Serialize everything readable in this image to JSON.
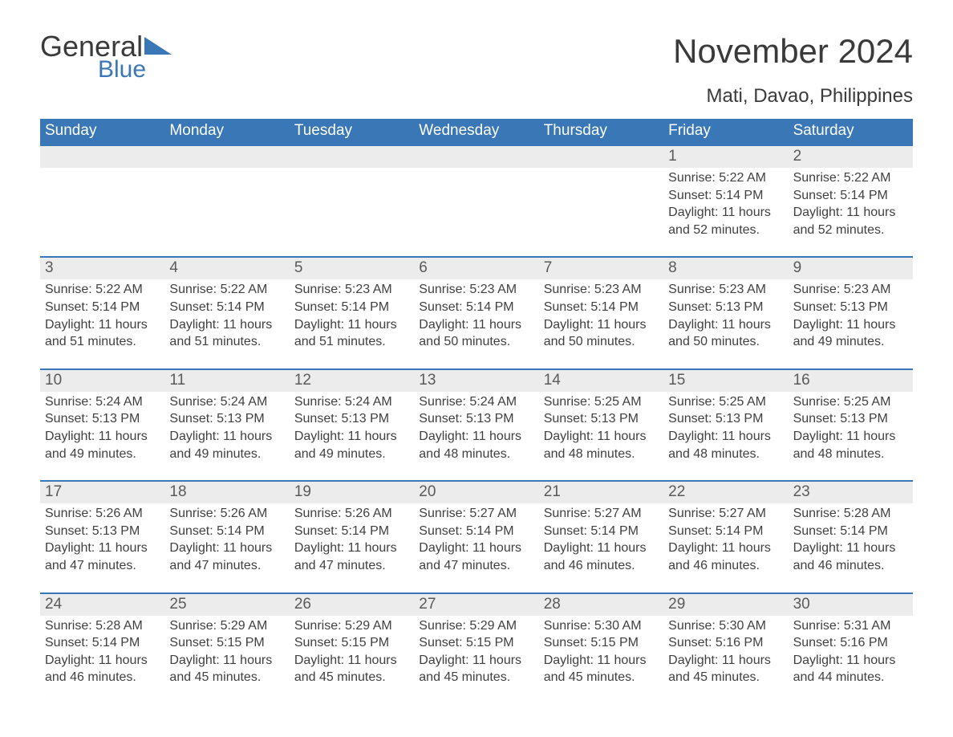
{
  "logo": {
    "word1": "General",
    "word2": "Blue",
    "accent_color": "#3a77b7"
  },
  "title": "November 2024",
  "location": "Mati, Davao, Philippines",
  "weekday_header_bg": "#3a77b7",
  "weekday_header_fg": "#ffffff",
  "datenum_bg": "#ececec",
  "strip_border": "#3a77b7",
  "text_color": "#404040",
  "weekdays": [
    "Sunday",
    "Monday",
    "Tuesday",
    "Wednesday",
    "Thursday",
    "Friday",
    "Saturday"
  ],
  "weeks": [
    [
      null,
      null,
      null,
      null,
      null,
      {
        "n": "1",
        "sunrise": "Sunrise: 5:22 AM",
        "sunset": "Sunset: 5:14 PM",
        "day1": "Daylight: 11 hours",
        "day2": "and 52 minutes."
      },
      {
        "n": "2",
        "sunrise": "Sunrise: 5:22 AM",
        "sunset": "Sunset: 5:14 PM",
        "day1": "Daylight: 11 hours",
        "day2": "and 52 minutes."
      }
    ],
    [
      {
        "n": "3",
        "sunrise": "Sunrise: 5:22 AM",
        "sunset": "Sunset: 5:14 PM",
        "day1": "Daylight: 11 hours",
        "day2": "and 51 minutes."
      },
      {
        "n": "4",
        "sunrise": "Sunrise: 5:22 AM",
        "sunset": "Sunset: 5:14 PM",
        "day1": "Daylight: 11 hours",
        "day2": "and 51 minutes."
      },
      {
        "n": "5",
        "sunrise": "Sunrise: 5:23 AM",
        "sunset": "Sunset: 5:14 PM",
        "day1": "Daylight: 11 hours",
        "day2": "and 51 minutes."
      },
      {
        "n": "6",
        "sunrise": "Sunrise: 5:23 AM",
        "sunset": "Sunset: 5:14 PM",
        "day1": "Daylight: 11 hours",
        "day2": "and 50 minutes."
      },
      {
        "n": "7",
        "sunrise": "Sunrise: 5:23 AM",
        "sunset": "Sunset: 5:14 PM",
        "day1": "Daylight: 11 hours",
        "day2": "and 50 minutes."
      },
      {
        "n": "8",
        "sunrise": "Sunrise: 5:23 AM",
        "sunset": "Sunset: 5:13 PM",
        "day1": "Daylight: 11 hours",
        "day2": "and 50 minutes."
      },
      {
        "n": "9",
        "sunrise": "Sunrise: 5:23 AM",
        "sunset": "Sunset: 5:13 PM",
        "day1": "Daylight: 11 hours",
        "day2": "and 49 minutes."
      }
    ],
    [
      {
        "n": "10",
        "sunrise": "Sunrise: 5:24 AM",
        "sunset": "Sunset: 5:13 PM",
        "day1": "Daylight: 11 hours",
        "day2": "and 49 minutes."
      },
      {
        "n": "11",
        "sunrise": "Sunrise: 5:24 AM",
        "sunset": "Sunset: 5:13 PM",
        "day1": "Daylight: 11 hours",
        "day2": "and 49 minutes."
      },
      {
        "n": "12",
        "sunrise": "Sunrise: 5:24 AM",
        "sunset": "Sunset: 5:13 PM",
        "day1": "Daylight: 11 hours",
        "day2": "and 49 minutes."
      },
      {
        "n": "13",
        "sunrise": "Sunrise: 5:24 AM",
        "sunset": "Sunset: 5:13 PM",
        "day1": "Daylight: 11 hours",
        "day2": "and 48 minutes."
      },
      {
        "n": "14",
        "sunrise": "Sunrise: 5:25 AM",
        "sunset": "Sunset: 5:13 PM",
        "day1": "Daylight: 11 hours",
        "day2": "and 48 minutes."
      },
      {
        "n": "15",
        "sunrise": "Sunrise: 5:25 AM",
        "sunset": "Sunset: 5:13 PM",
        "day1": "Daylight: 11 hours",
        "day2": "and 48 minutes."
      },
      {
        "n": "16",
        "sunrise": "Sunrise: 5:25 AM",
        "sunset": "Sunset: 5:13 PM",
        "day1": "Daylight: 11 hours",
        "day2": "and 48 minutes."
      }
    ],
    [
      {
        "n": "17",
        "sunrise": "Sunrise: 5:26 AM",
        "sunset": "Sunset: 5:13 PM",
        "day1": "Daylight: 11 hours",
        "day2": "and 47 minutes."
      },
      {
        "n": "18",
        "sunrise": "Sunrise: 5:26 AM",
        "sunset": "Sunset: 5:14 PM",
        "day1": "Daylight: 11 hours",
        "day2": "and 47 minutes."
      },
      {
        "n": "19",
        "sunrise": "Sunrise: 5:26 AM",
        "sunset": "Sunset: 5:14 PM",
        "day1": "Daylight: 11 hours",
        "day2": "and 47 minutes."
      },
      {
        "n": "20",
        "sunrise": "Sunrise: 5:27 AM",
        "sunset": "Sunset: 5:14 PM",
        "day1": "Daylight: 11 hours",
        "day2": "and 47 minutes."
      },
      {
        "n": "21",
        "sunrise": "Sunrise: 5:27 AM",
        "sunset": "Sunset: 5:14 PM",
        "day1": "Daylight: 11 hours",
        "day2": "and 46 minutes."
      },
      {
        "n": "22",
        "sunrise": "Sunrise: 5:27 AM",
        "sunset": "Sunset: 5:14 PM",
        "day1": "Daylight: 11 hours",
        "day2": "and 46 minutes."
      },
      {
        "n": "23",
        "sunrise": "Sunrise: 5:28 AM",
        "sunset": "Sunset: 5:14 PM",
        "day1": "Daylight: 11 hours",
        "day2": "and 46 minutes."
      }
    ],
    [
      {
        "n": "24",
        "sunrise": "Sunrise: 5:28 AM",
        "sunset": "Sunset: 5:14 PM",
        "day1": "Daylight: 11 hours",
        "day2": "and 46 minutes."
      },
      {
        "n": "25",
        "sunrise": "Sunrise: 5:29 AM",
        "sunset": "Sunset: 5:15 PM",
        "day1": "Daylight: 11 hours",
        "day2": "and 45 minutes."
      },
      {
        "n": "26",
        "sunrise": "Sunrise: 5:29 AM",
        "sunset": "Sunset: 5:15 PM",
        "day1": "Daylight: 11 hours",
        "day2": "and 45 minutes."
      },
      {
        "n": "27",
        "sunrise": "Sunrise: 5:29 AM",
        "sunset": "Sunset: 5:15 PM",
        "day1": "Daylight: 11 hours",
        "day2": "and 45 minutes."
      },
      {
        "n": "28",
        "sunrise": "Sunrise: 5:30 AM",
        "sunset": "Sunset: 5:15 PM",
        "day1": "Daylight: 11 hours",
        "day2": "and 45 minutes."
      },
      {
        "n": "29",
        "sunrise": "Sunrise: 5:30 AM",
        "sunset": "Sunset: 5:16 PM",
        "day1": "Daylight: 11 hours",
        "day2": "and 45 minutes."
      },
      {
        "n": "30",
        "sunrise": "Sunrise: 5:31 AM",
        "sunset": "Sunset: 5:16 PM",
        "day1": "Daylight: 11 hours",
        "day2": "and 44 minutes."
      }
    ]
  ]
}
